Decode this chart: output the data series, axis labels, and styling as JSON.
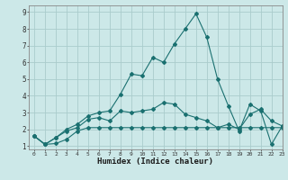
{
  "xlabel": "Humidex (Indice chaleur)",
  "ylabel": "",
  "xlim": [
    -0.5,
    23
  ],
  "ylim": [
    0.8,
    9.4
  ],
  "xticks": [
    0,
    1,
    2,
    3,
    4,
    5,
    6,
    7,
    8,
    9,
    10,
    11,
    12,
    13,
    14,
    15,
    16,
    17,
    18,
    19,
    20,
    21,
    22,
    23
  ],
  "yticks": [
    1,
    2,
    3,
    4,
    5,
    6,
    7,
    8,
    9
  ],
  "bg_color": "#cce8e8",
  "grid_color": "#aacccc",
  "line_color": "#1a7070",
  "series": [
    [
      1.6,
      1.1,
      1.15,
      1.4,
      1.9,
      2.1,
      2.1,
      2.1,
      2.1,
      2.1,
      2.1,
      2.1,
      2.1,
      2.1,
      2.1,
      2.1,
      2.1,
      2.1,
      2.1,
      2.1,
      2.1,
      2.1,
      2.1,
      2.1
    ],
    [
      1.6,
      1.1,
      1.5,
      1.9,
      2.1,
      2.6,
      2.7,
      2.5,
      3.1,
      3.0,
      3.1,
      3.2,
      3.6,
      3.5,
      2.9,
      2.7,
      2.5,
      2.1,
      2.3,
      2.0,
      2.9,
      3.2,
      2.5,
      2.2
    ],
    [
      1.6,
      1.1,
      1.5,
      2.0,
      2.3,
      2.8,
      3.0,
      3.1,
      4.1,
      5.3,
      5.2,
      6.3,
      6.0,
      7.1,
      8.0,
      8.9,
      7.5,
      5.0,
      3.4,
      1.9,
      3.5,
      3.1,
      1.1,
      2.2
    ]
  ]
}
